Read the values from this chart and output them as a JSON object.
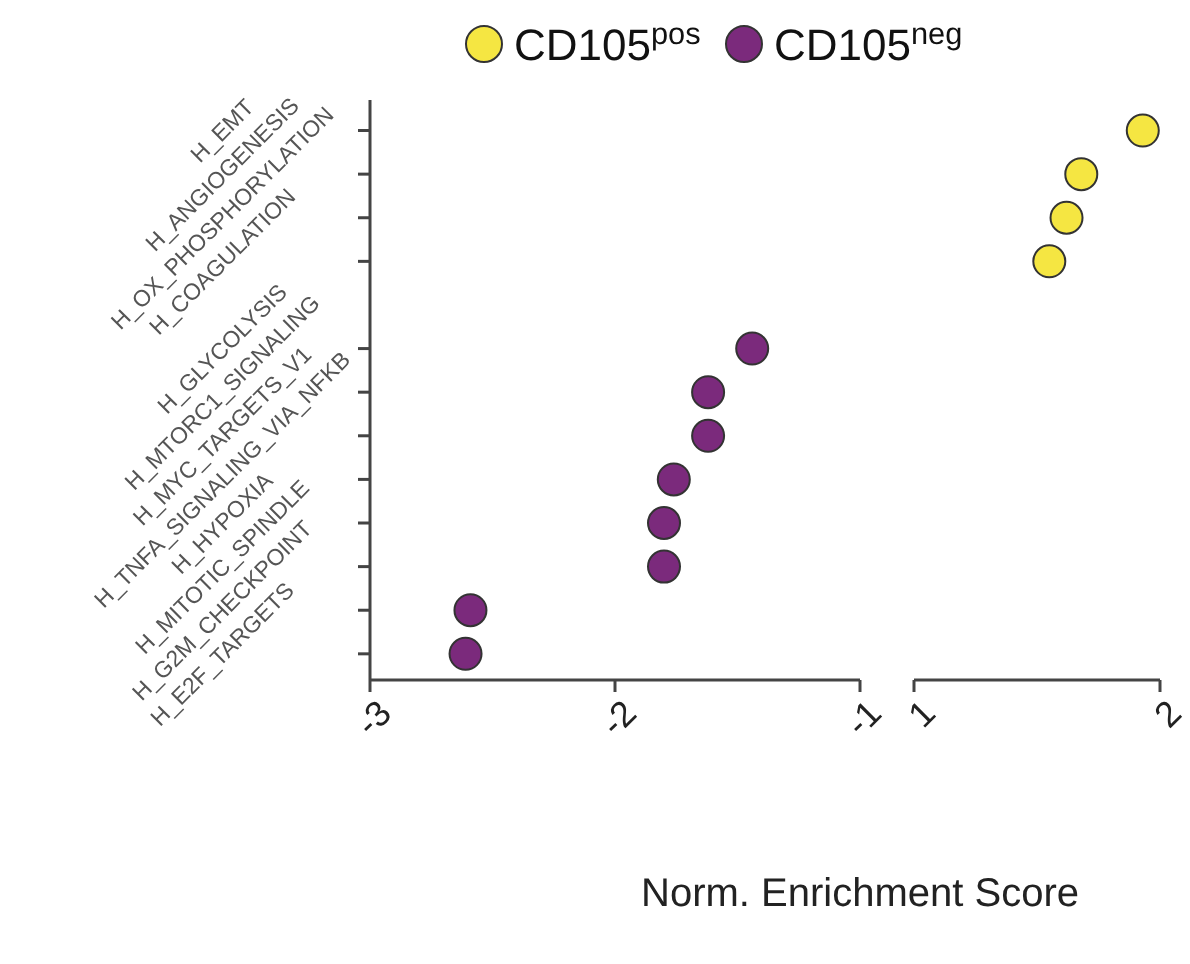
{
  "chart_data": [
    {
      "type": "scatter",
      "orientation": "horizontal",
      "xlabel": "Norm. Enrichment Score",
      "legend": "top",
      "marker": "circle",
      "categories": [
        "H_EMT",
        "H_ANGIOGENESIS",
        "H_OX_PHOSPHORYLATION",
        "H_COAGULATION",
        null,
        "H_GLYCOLYSIS",
        "H_MTORC1_SIGNALING",
        "H_MYC_TARGETS_V1",
        "H_TNFA_SIGNALING_VIA_NFKB",
        "H_HYPOXIA",
        "H_MITOTIC_SPINDLE",
        "H_G2M_CHECKPOINT",
        "H_E2F_TARGETS"
      ],
      "xlim": [
        -3,
        -1
      ],
      "xticks": [
        -3,
        -2,
        -1
      ],
      "series": [
        {
          "name": "CD105$^{neg}$",
          "color": "#7b2a7c",
          "values": [
            null,
            null,
            null,
            null,
            null,
            -1.44,
            -1.62,
            -1.62,
            -1.76,
            -1.8,
            -1.8,
            -2.59,
            -2.61
          ]
        }
      ]
    },
    {
      "type": "scatter",
      "orientation": "horizontal",
      "legend": "top",
      "marker": "circle",
      "tick_labels": "x",
      "xlim": [
        1,
        2
      ],
      "xticks": [
        1,
        2
      ],
      "series": [
        {
          "name": "CD105$^{pos}$",
          "color": "#f5e642",
          "values": [
            1.93,
            1.68,
            1.62,
            1.55,
            null,
            null,
            null,
            null,
            null,
            null,
            null,
            null,
            null
          ]
        }
      ]
    }
  ]
}
